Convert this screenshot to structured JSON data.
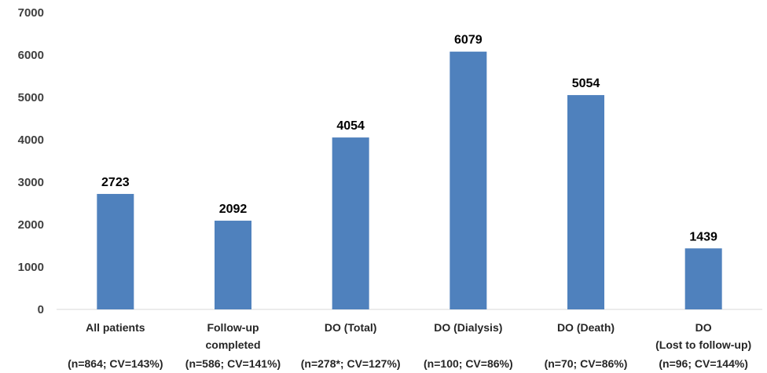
{
  "chart_data": {
    "type": "bar",
    "title": "",
    "xlabel": "",
    "ylabel": "",
    "ylim": [
      0,
      7000
    ],
    "yticks": [
      0,
      1000,
      2000,
      3000,
      4000,
      5000,
      6000,
      7000
    ],
    "grid": false,
    "legend": "none",
    "bar_color": "#4F81BD",
    "categories": [
      [
        "All patients",
        "",
        "(n=864; CV=143%)"
      ],
      [
        "Follow-up",
        "completed",
        "(n=586; CV=141%)"
      ],
      [
        "DO (Total)",
        "",
        "(n=278*; CV=127%)"
      ],
      [
        "DO (Dialysis)",
        "",
        "(n=100; CV=86%)"
      ],
      [
        "DO (Death)",
        "",
        "(n=70; CV=86%)"
      ],
      [
        "DO",
        "(Lost to follow-up)",
        "(n=96; CV=144%)"
      ]
    ],
    "values": [
      2723,
      2092,
      4054,
      6079,
      5054,
      1439
    ]
  }
}
